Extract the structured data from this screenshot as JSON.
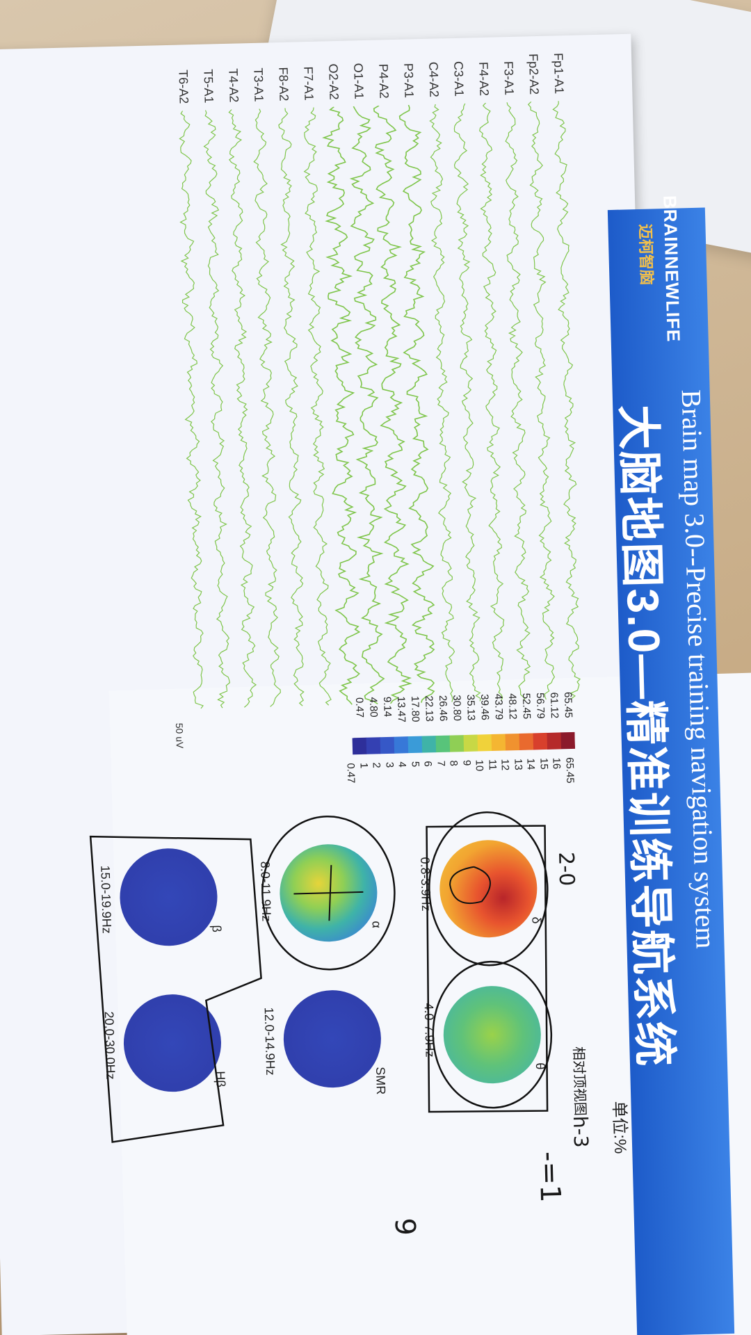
{
  "header": {
    "logo_text": "BRAINNEWLIFE",
    "logo_cn": "迈柯智脑",
    "title_en": "Brain map 3.0--Precise training navigation system",
    "title_cn": "大脑地图3.0—精准训练导航系统",
    "unit": "单位:%"
  },
  "eeg": {
    "channels": [
      "Fp1-A1",
      "Fp2-A2",
      "F3-A1",
      "F4-A2",
      "C3-A1",
      "C4-A2",
      "P3-A1",
      "P4-A2",
      "O1-A1",
      "O2-A2",
      "F7-A1",
      "F8-A2",
      "T3-A1",
      "T4-A2",
      "T5-A1",
      "T6-A2"
    ],
    "scale_value": "50",
    "scale_unit": "uV",
    "trace_color": "#7ec54a"
  },
  "colorbar": {
    "left_values": [
      "65.45",
      "61.12",
      "56.79",
      "52.45",
      "48.12",
      "43.79",
      "39.46",
      "35.13",
      "30.80",
      "26.46",
      "22.13",
      "17.80",
      "13.47",
      "9.14",
      "4.80",
      "0.47"
    ],
    "right_values": [
      "65.45",
      "16",
      "15",
      "14",
      "13",
      "12",
      "11",
      "10",
      "9",
      "8",
      "7",
      "6",
      "5",
      "4",
      "3",
      "2",
      "1",
      "0.47"
    ],
    "colors": [
      "#8b1a2b",
      "#b52a2a",
      "#d8402c",
      "#e96a2e",
      "#f0922f",
      "#f4b632",
      "#f0d23a",
      "#c8d845",
      "#8fcf55",
      "#58c47a",
      "#3fb3a8",
      "#3a9bd8",
      "#3778d8",
      "#3658c7",
      "#3440b2",
      "#2e2f9a"
    ]
  },
  "bands": [
    {
      "greek": "δ",
      "range": "0.8-3.9Hz",
      "style": "delta"
    },
    {
      "greek": "θ",
      "range": "4.0-7.9Hz",
      "style": "theta"
    },
    {
      "greek": "α",
      "range": "8.0-11.9Hz",
      "style": "alpha"
    },
    {
      "greek": "SMR",
      "range": "12.0-14.9Hz",
      "style": "low"
    },
    {
      "greek": "β",
      "range": "15.0-19.9Hz",
      "style": "low"
    },
    {
      "greek": "Hβ",
      "range": "20.0-30.0Hz",
      "style": "low"
    }
  ],
  "handwriting": {
    "relative_top_view": "相对顶视图",
    "note1": "2-0",
    "note2": "h-3",
    "note3": "-=1",
    "note4": "9"
  }
}
